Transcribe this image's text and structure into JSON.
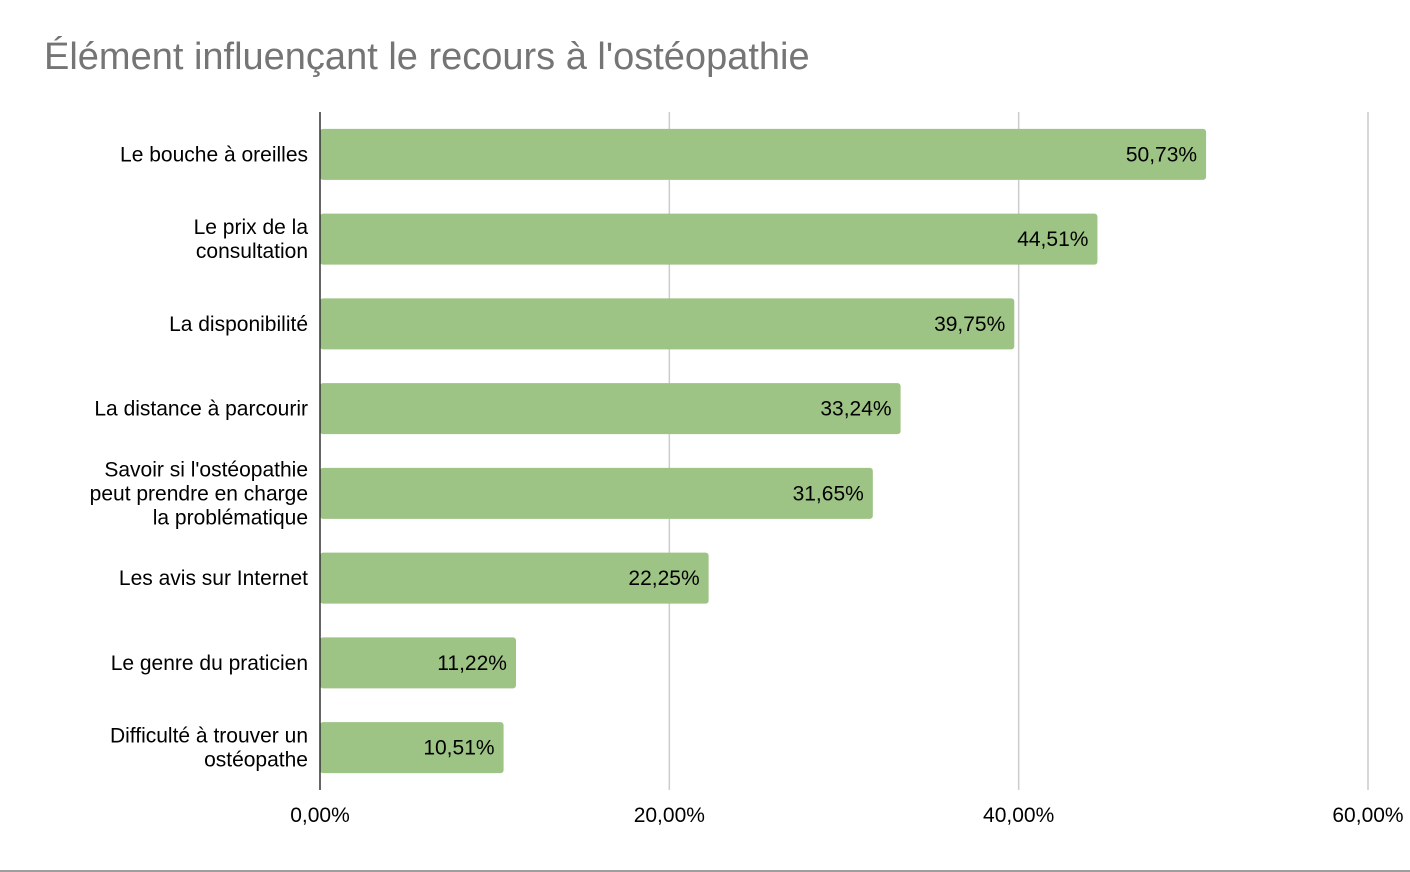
{
  "chart_data": {
    "type": "bar",
    "orientation": "horizontal",
    "title": "Élément influençant le recours à l'ostéopathie",
    "categories": [
      "Le bouche à oreilles",
      "Le prix de la consultation",
      "La disponibilité",
      "La distance à parcourir",
      "Savoir si l'ostéopathie peut prendre en charge la problématique",
      "Les avis sur Internet",
      "Le genre du praticien",
      "Difficulté à trouver un ostéopathe"
    ],
    "category_lines": [
      [
        "Le bouche à oreilles"
      ],
      [
        "Le prix de la",
        "consultation"
      ],
      [
        "La disponibilité"
      ],
      [
        "La distance à parcourir"
      ],
      [
        "Savoir si l'ostéopathie",
        "peut prendre en charge",
        "la problématique"
      ],
      [
        "Les avis sur Internet"
      ],
      [
        "Le genre du praticien"
      ],
      [
        "Difficulté à trouver un",
        "ostéopathe"
      ]
    ],
    "values": [
      50.73,
      44.51,
      39.75,
      33.24,
      31.65,
      22.25,
      11.22,
      10.51
    ],
    "data_labels": [
      "50,73%",
      "44,51%",
      "39,75%",
      "33,24%",
      "31,65%",
      "22,25%",
      "11,22%",
      "10,51%"
    ],
    "xlim": [
      0,
      60
    ],
    "x_ticks": [
      0,
      20,
      40,
      60
    ],
    "x_tick_labels": [
      "0,00%",
      "20,00%",
      "40,00%",
      "60,00%"
    ],
    "xlabel": "",
    "ylabel": "",
    "grid": true,
    "legend": "none",
    "colors": {
      "bar": "#9dc385",
      "title": "#757575",
      "grid": "#cccccc",
      "axis": "#333333",
      "text": "#000000"
    }
  }
}
